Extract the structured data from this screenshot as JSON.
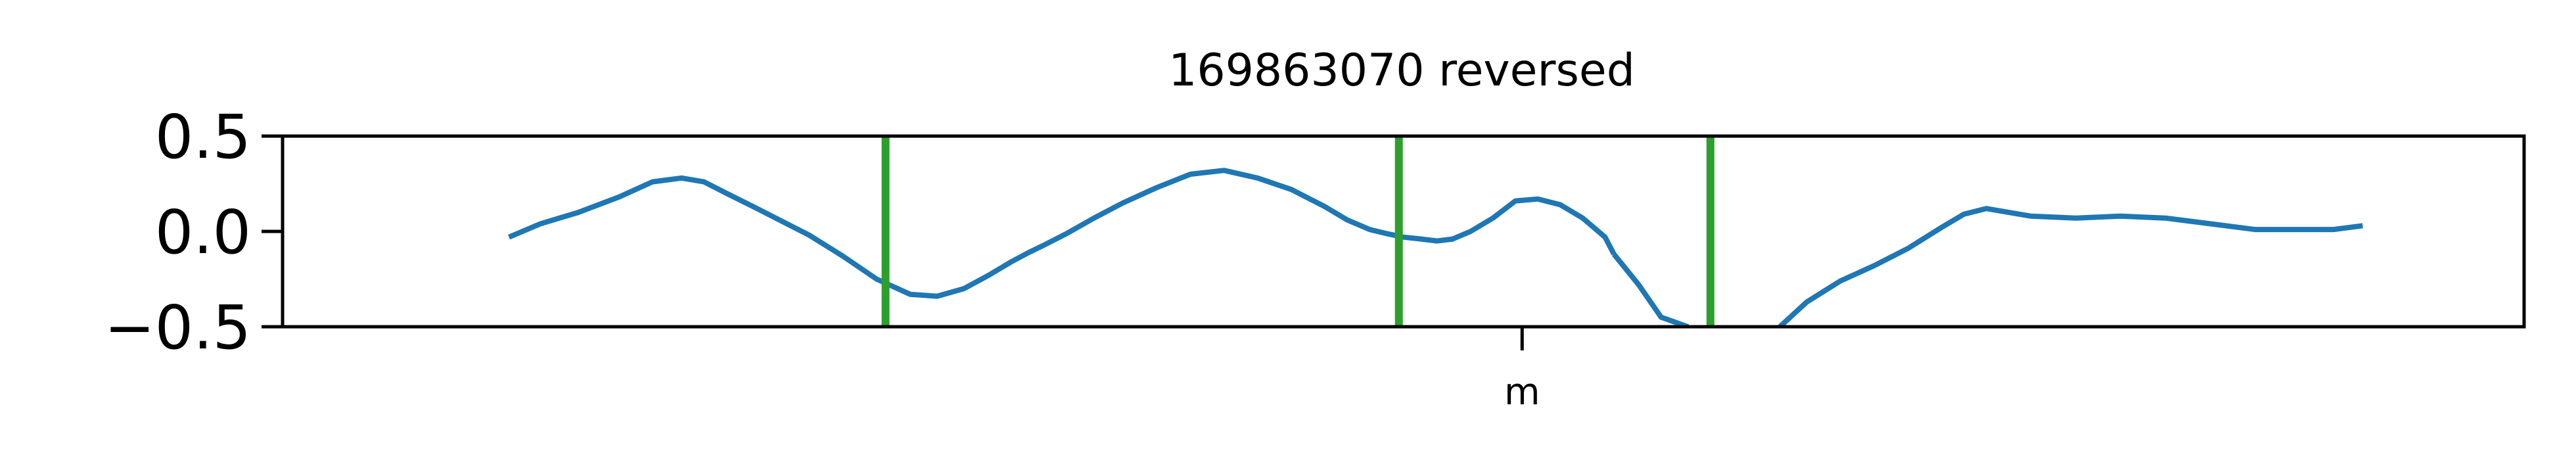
{
  "chart_data": {
    "type": "line",
    "title": "169863070 reversed",
    "xlabel": "",
    "ylabel": "",
    "ylim": [
      -0.5,
      0.5
    ],
    "xlim": [
      0,
      100
    ],
    "yticks": [
      {
        "value": 0.5,
        "label": "0.5"
      },
      {
        "value": 0.0,
        "label": "0.0"
      },
      {
        "value": -0.5,
        "label": "−0.5"
      }
    ],
    "xticks": [
      {
        "value": 55.3,
        "label": "m"
      }
    ],
    "grid": false,
    "colors": {
      "series": "#1f77b4",
      "markers": "#2ca02c",
      "axes": "#000000"
    },
    "series": [
      {
        "x": [
          10.1,
          11.5,
          13.2,
          15.0,
          16.5,
          17.8,
          18.8,
          19.8,
          21.0,
          22.0,
          23.5,
          25.0,
          26.5,
          28.0,
          29.2,
          30.4,
          31.5,
          32.5,
          33.3,
          34.0,
          35.0,
          36.2,
          37.5,
          39.0,
          40.5,
          42.0,
          43.5,
          45.0,
          46.5,
          47.5,
          48.5,
          49.2,
          50.0,
          50.8,
          51.5,
          52.2,
          53.0,
          54.0,
          55.0,
          56.0,
          57.0,
          58.0,
          59.0,
          59.4
        ],
        "y": [
          -0.03,
          0.04,
          0.1,
          0.18,
          0.26,
          0.28,
          0.26,
          0.2,
          0.13,
          0.07,
          -0.02,
          -0.13,
          -0.25,
          -0.33,
          -0.34,
          -0.3,
          -0.23,
          -0.16,
          -0.11,
          -0.07,
          -0.01,
          0.07,
          0.15,
          0.23,
          0.3,
          0.32,
          0.28,
          0.22,
          0.13,
          0.06,
          0.01,
          -0.01,
          -0.03,
          -0.04,
          -0.05,
          -0.04,
          0.0,
          0.07,
          0.16,
          0.17,
          0.14,
          0.07,
          -0.03,
          -0.12
        ]
      },
      {
        "x": [
          59.4,
          60.5,
          61.5,
          62.7
        ],
        "y": [
          -0.12,
          -0.28,
          -0.45,
          -0.5
        ]
      },
      {
        "x": [
          66.8,
          68.0,
          69.5,
          71.0,
          72.5,
          74.0,
          75.0,
          76.0,
          78.0,
          80.0,
          82.0,
          84.0,
          86.0,
          88.0,
          90.0,
          91.5,
          92.8
        ],
        "y": [
          -0.5,
          -0.37,
          -0.26,
          -0.18,
          -0.09,
          0.02,
          0.09,
          0.12,
          0.08,
          0.07,
          0.08,
          0.07,
          0.04,
          0.01,
          0.01,
          0.01,
          0.03
        ]
      }
    ],
    "vlines": [
      26.9,
      49.8,
      63.7
    ]
  }
}
